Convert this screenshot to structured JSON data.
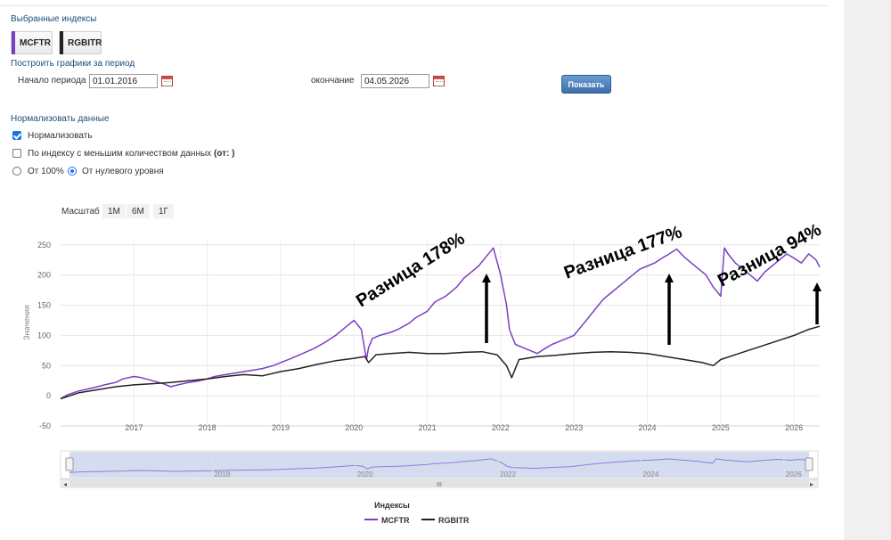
{
  "selected_indices": {
    "title": "Выбранные индексы",
    "items": [
      {
        "label": "MCFTR",
        "color": "#7b3fc4"
      },
      {
        "label": "RGBITR",
        "color": "#222222"
      }
    ]
  },
  "period": {
    "title": "Построить графики за период",
    "start_label": "Начало периода",
    "start_value": "01.01.2016",
    "end_label": "окончание",
    "end_value": "04.05.2026",
    "show_button": "Показать"
  },
  "normalize": {
    "title": "Нормализовать данные",
    "normalize_label": "Нормализовать",
    "normalize_checked": true,
    "by_index_label": "По индексу с меньшим количеством данных",
    "by_index_suffix": "(от: )",
    "by_index_checked": false,
    "radio_100_label": "От 100%",
    "radio_zero_label": "От нулевого уровня",
    "radio_selected": "zero"
  },
  "zoom": {
    "label": "Масштаб",
    "options": [
      "1М",
      "6М",
      "1Г"
    ]
  },
  "legend": {
    "title": "Индексы"
  },
  "colors": {
    "mcftr": "#7b3fc4",
    "rgbitr": "#222222",
    "annotation": "#000000"
  },
  "chart_data": {
    "type": "line",
    "ylabel": "Значения",
    "ylim": [
      -50,
      260
    ],
    "yticks": [
      250,
      200,
      150,
      100,
      50,
      0,
      -50
    ],
    "xlim": [
      2016.0,
      2026.35
    ],
    "xticks": [
      "2017",
      "2018",
      "2019",
      "2020",
      "2021",
      "2022",
      "2023",
      "2024",
      "2025",
      "2026"
    ],
    "navigator_ticks": [
      "2018",
      "2020",
      "2022",
      "2024",
      "2026"
    ],
    "grid": true,
    "legend_position": "bottom",
    "series": [
      {
        "name": "MCFTR",
        "x": [
          2016.0,
          2016.1,
          2016.25,
          2016.4,
          2016.5,
          2016.6,
          2016.75,
          2016.85,
          2017.0,
          2017.1,
          2017.25,
          2017.4,
          2017.5,
          2017.6,
          2017.75,
          2017.9,
          2018.0,
          2018.1,
          2018.25,
          2018.4,
          2018.5,
          2018.6,
          2018.75,
          2018.9,
          2019.0,
          2019.15,
          2019.3,
          2019.45,
          2019.6,
          2019.75,
          2019.9,
          2020.0,
          2020.1,
          2020.17,
          2020.2,
          2020.25,
          2020.35,
          2020.5,
          2020.6,
          2020.75,
          2020.85,
          2021.0,
          2021.1,
          2021.25,
          2021.4,
          2021.5,
          2021.6,
          2021.7,
          2021.8,
          2021.9,
          2022.0,
          2022.08,
          2022.12,
          2022.15,
          2022.2,
          2022.3,
          2022.4,
          2022.5,
          2022.6,
          2022.7,
          2022.8,
          2022.9,
          2023.0,
          2023.1,
          2023.2,
          2023.3,
          2023.4,
          2023.5,
          2023.6,
          2023.7,
          2023.8,
          2023.9,
          2024.0,
          2024.1,
          2024.2,
          2024.3,
          2024.4,
          2024.5,
          2024.6,
          2024.7,
          2024.8,
          2024.9,
          2025.0,
          2025.05,
          2025.1,
          2025.2,
          2025.3,
          2025.4,
          2025.5,
          2025.6,
          2025.7,
          2025.8,
          2025.9,
          2026.0,
          2026.1,
          2026.2,
          2026.3,
          2026.35
        ],
        "y": [
          -5,
          2,
          8,
          12,
          15,
          18,
          22,
          28,
          32,
          30,
          25,
          20,
          15,
          18,
          22,
          25,
          28,
          32,
          35,
          38,
          40,
          42,
          45,
          50,
          55,
          62,
          70,
          78,
          88,
          100,
          115,
          125,
          110,
          60,
          80,
          95,
          100,
          105,
          110,
          120,
          130,
          140,
          155,
          165,
          180,
          195,
          205,
          215,
          230,
          245,
          200,
          150,
          110,
          100,
          85,
          80,
          75,
          70,
          78,
          85,
          90,
          95,
          100,
          115,
          130,
          145,
          160,
          170,
          180,
          190,
          200,
          210,
          215,
          220,
          228,
          235,
          243,
          230,
          220,
          210,
          200,
          180,
          165,
          245,
          235,
          220,
          210,
          200,
          190,
          205,
          215,
          225,
          235,
          228,
          220,
          235,
          225,
          213
        ]
      },
      {
        "name": "RGBITR",
        "x": [
          2016.0,
          2016.25,
          2016.5,
          2016.75,
          2017.0,
          2017.25,
          2017.5,
          2017.75,
          2018.0,
          2018.25,
          2018.5,
          2018.75,
          2019.0,
          2019.25,
          2019.5,
          2019.75,
          2020.0,
          2020.15,
          2020.2,
          2020.3,
          2020.5,
          2020.75,
          2021.0,
          2021.25,
          2021.5,
          2021.75,
          2021.95,
          2022.08,
          2022.15,
          2022.25,
          2022.5,
          2022.75,
          2023.0,
          2023.25,
          2023.5,
          2023.75,
          2024.0,
          2024.25,
          2024.5,
          2024.75,
          2024.9,
          2025.0,
          2025.25,
          2025.5,
          2025.75,
          2026.0,
          2026.2,
          2026.35
        ],
        "y": [
          -5,
          5,
          10,
          15,
          18,
          20,
          22,
          25,
          28,
          32,
          35,
          33,
          40,
          45,
          52,
          58,
          62,
          65,
          55,
          68,
          70,
          72,
          70,
          70,
          72,
          73,
          68,
          50,
          30,
          60,
          65,
          67,
          70,
          72,
          73,
          72,
          70,
          65,
          60,
          55,
          50,
          60,
          70,
          80,
          90,
          100,
          110,
          115
        ]
      }
    ],
    "annotations": [
      {
        "text": "Разница 178%",
        "x": 2021.75
      },
      {
        "text": "Разница 177%",
        "x": 2024.4
      },
      {
        "text": "Разница 94%",
        "x": 2026.3
      }
    ]
  }
}
